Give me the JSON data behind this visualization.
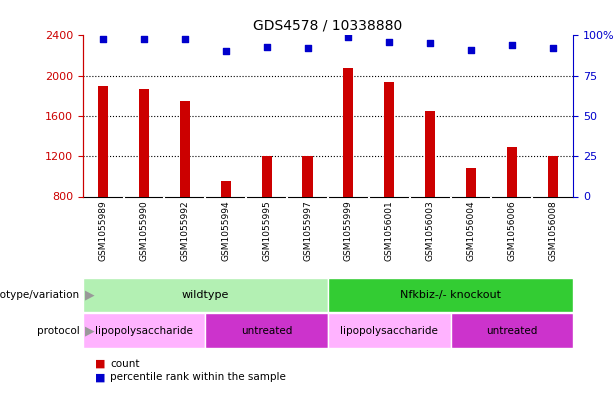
{
  "title": "GDS4578 / 10338880",
  "samples": [
    "GSM1055989",
    "GSM1055990",
    "GSM1055992",
    "GSM1055994",
    "GSM1055995",
    "GSM1055997",
    "GSM1055999",
    "GSM1056001",
    "GSM1056003",
    "GSM1056004",
    "GSM1056006",
    "GSM1056008"
  ],
  "counts": [
    1900,
    1870,
    1750,
    950,
    1200,
    1200,
    2080,
    1940,
    1650,
    1080,
    1290,
    1200
  ],
  "percentiles": [
    98,
    98,
    98,
    90,
    93,
    92,
    99,
    96,
    95,
    91,
    94,
    92
  ],
  "ymin": 800,
  "ymax": 2400,
  "yticks": [
    800,
    1200,
    1600,
    2000,
    2400
  ],
  "right_yticks": [
    0,
    25,
    50,
    75,
    100
  ],
  "bar_color": "#cc0000",
  "dot_color": "#0000cc",
  "title_fontsize": 10,
  "bg_color": "#ffffff",
  "tick_label_bg": "#cccccc",
  "genotype_groups": [
    {
      "label": "wildtype",
      "start": 0,
      "end": 5,
      "color": "#b3f0b3"
    },
    {
      "label": "Nfkbiz-/- knockout",
      "start": 6,
      "end": 11,
      "color": "#33cc33"
    }
  ],
  "protocol_groups": [
    {
      "label": "lipopolysaccharide",
      "start": 0,
      "end": 2,
      "color": "#ffb3ff"
    },
    {
      "label": "untreated",
      "start": 3,
      "end": 5,
      "color": "#cc33cc"
    },
    {
      "label": "lipopolysaccharide",
      "start": 6,
      "end": 8,
      "color": "#ffb3ff"
    },
    {
      "label": "untreated",
      "start": 9,
      "end": 11,
      "color": "#cc33cc"
    }
  ],
  "legend_count_color": "#cc0000",
  "legend_percentile_color": "#0000cc"
}
